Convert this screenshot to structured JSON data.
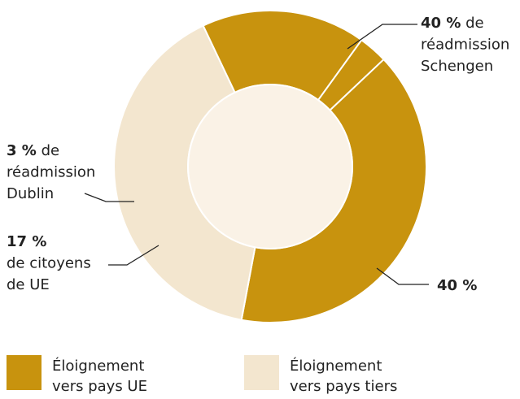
{
  "chart_data": {
    "type": "donut",
    "values": [
      40,
      40,
      17,
      3
    ],
    "value_labels": [
      "40 %",
      "40 %",
      "17 %",
      "3 %"
    ],
    "labels": [
      [
        "de",
        "réadmission",
        "Schengen"
      ],
      null,
      [
        "de citoyens",
        "de UE"
      ],
      [
        "de",
        "réadmission",
        "Dublin"
      ]
    ],
    "colors": [
      "#c8930e",
      "#f3e6cf",
      "#c8930e",
      "#c8930e"
    ],
    "legend": [
      {
        "name": [
          "Éloignement",
          "vers pays UE"
        ],
        "color": "#c8930e"
      },
      {
        "name": [
          "Éloignement",
          "vers pays tiers"
        ],
        "color": "#f3e6cf"
      }
    ]
  }
}
